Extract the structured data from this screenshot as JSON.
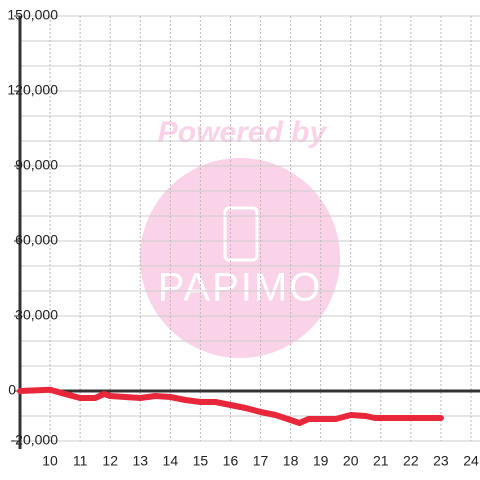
{
  "chart_data": {
    "type": "line",
    "watermark": [
      "Powered by",
      "PAPIMO"
    ],
    "x": [
      9,
      10,
      10.5,
      11,
      11.5,
      11.8,
      12,
      12.5,
      13,
      13.5,
      14,
      14.5,
      15,
      15.5,
      16,
      16.5,
      17,
      17.5,
      18,
      18.3,
      18.6,
      19,
      19.5,
      20,
      20.5,
      20.8,
      21,
      22,
      23
    ],
    "series": [
      {
        "color": "#e8273a",
        "values": [
          0,
          500,
          -1200,
          -2800,
          -2800,
          -1200,
          -2000,
          -2400,
          -2800,
          -2000,
          -2400,
          -3600,
          -4400,
          -4400,
          -5600,
          -6800,
          -8400,
          -9600,
          -11600,
          -12800,
          -11200,
          -11200,
          -11200,
          -9600,
          -10000,
          -10800,
          -10800,
          -10800,
          -10800
        ]
      }
    ],
    "xlim": [
      9,
      24.3
    ],
    "xticks": [
      10,
      11,
      12,
      13,
      14,
      15,
      16,
      17,
      18,
      19,
      20,
      21,
      22,
      23,
      24
    ],
    "ylim": [
      -20000,
      150000
    ],
    "yticks": [
      {
        "value": -20000,
        "label": "-20,000"
      },
      0,
      {
        "value": 30000,
        "label": "30,000"
      },
      {
        "value": 60000,
        "label": "60,000"
      },
      {
        "value": 90000,
        "label": "90,000"
      },
      {
        "value": 120000,
        "label": "120,000"
      },
      {
        "value": 150000,
        "label": "150,000"
      }
    ],
    "y_minor_ticks": [
      -10000,
      10000,
      20000,
      40000,
      50000,
      70000,
      80000,
      100000,
      110000,
      130000,
      140000
    ],
    "grid": true
  }
}
